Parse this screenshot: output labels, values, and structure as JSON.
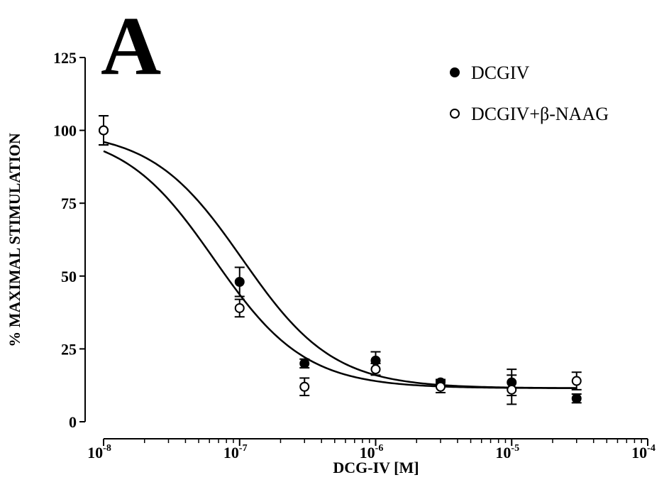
{
  "panel_label": "A",
  "chart_data": {
    "type": "scatter",
    "xlabel": "DCG-IV [M]",
    "ylabel": "% MAXIMAL STIMULATION",
    "xscale": "log",
    "xlim": [
      1e-08,
      0.0001
    ],
    "ylim": [
      0,
      125
    ],
    "x_ticks": [
      {
        "base": "10",
        "exp": "-8",
        "value": 1e-08
      },
      {
        "base": "10",
        "exp": "-7",
        "value": 1e-07
      },
      {
        "base": "10",
        "exp": "-6",
        "value": 1e-06
      },
      {
        "base": "10",
        "exp": "-5",
        "value": 1e-05
      },
      {
        "base": "10",
        "exp": "-4",
        "value": 0.0001
      }
    ],
    "y_ticks": [
      0,
      25,
      50,
      75,
      100,
      125
    ],
    "grid": false,
    "legend": {
      "position": "top-right"
    },
    "series": [
      {
        "name": "DCGIV",
        "marker": "filled-circle",
        "color": "#000000",
        "points": [
          {
            "x": 1e-08,
            "y": 100,
            "err": 5
          },
          {
            "x": 1e-07,
            "y": 48,
            "err": 5
          },
          {
            "x": 3e-07,
            "y": 20,
            "err": 1.5
          },
          {
            "x": 1e-06,
            "y": 21,
            "err": 3
          },
          {
            "x": 3e-06,
            "y": 13.5,
            "err": 1
          },
          {
            "x": 1e-05,
            "y": 13.5,
            "err": 4.5
          },
          {
            "x": 3e-05,
            "y": 8,
            "err": 1.5
          }
        ],
        "fit": {
          "top": 100,
          "bottom": 11.5,
          "ec50": 1.05e-07,
          "hill": 1.3
        }
      },
      {
        "name": "DCGIV+β-NAAG",
        "marker": "open-circle",
        "color": "#000000",
        "points": [
          {
            "x": 1e-08,
            "y": 100,
            "err": 5
          },
          {
            "x": 1e-07,
            "y": 39,
            "err": 3
          },
          {
            "x": 3e-07,
            "y": 12,
            "err": 3
          },
          {
            "x": 1e-06,
            "y": 18,
            "err": 2
          },
          {
            "x": 3e-06,
            "y": 12,
            "err": 2
          },
          {
            "x": 1e-05,
            "y": 11,
            "err": 5
          },
          {
            "x": 3e-05,
            "y": 14,
            "err": 3
          }
        ],
        "fit": {
          "top": 100,
          "bottom": 11.5,
          "ec50": 6.5e-08,
          "hill": 1.3
        }
      }
    ]
  }
}
